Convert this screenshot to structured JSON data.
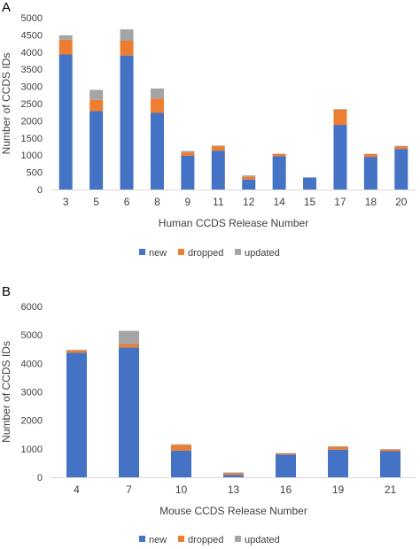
{
  "panels": {
    "a": "A",
    "b": "B"
  },
  "chart_data": [
    {
      "type": "bar",
      "stacked": true,
      "xlabel": "Human CCDS Release Number",
      "ylabel": "Number of CCDS IDs",
      "ylim": [
        0,
        5000
      ],
      "yticks": [
        0,
        500,
        1000,
        1500,
        2000,
        2500,
        3000,
        3500,
        4000,
        4500,
        5000
      ],
      "grid": false,
      "legend_position": "bottom",
      "categories": [
        "3",
        "5",
        "6",
        "8",
        "9",
        "11",
        "12",
        "14",
        "15",
        "17",
        "18",
        "20"
      ],
      "series": [
        {
          "name": "new",
          "color": "#4472c4",
          "values": [
            3930,
            2280,
            3900,
            2230,
            980,
            1130,
            290,
            970,
            350,
            1880,
            950,
            1180
          ]
        },
        {
          "name": "dropped",
          "color": "#ed7d31",
          "values": [
            430,
            330,
            430,
            420,
            100,
            130,
            80,
            70,
            0,
            440,
            80,
            70
          ]
        },
        {
          "name": "updated",
          "color": "#a5a5a5",
          "values": [
            130,
            290,
            330,
            290,
            40,
            20,
            40,
            0,
            0,
            20,
            10,
            20
          ]
        }
      ]
    },
    {
      "type": "bar",
      "stacked": true,
      "xlabel": "Mouse CCDS Release Number",
      "ylabel": "Number of CCDS IDs",
      "ylim": [
        0,
        6000
      ],
      "yticks": [
        0,
        1000,
        2000,
        3000,
        4000,
        5000,
        6000
      ],
      "grid": false,
      "legend_position": "bottom",
      "categories": [
        "4",
        "7",
        "10",
        "13",
        "16",
        "19",
        "21"
      ],
      "series": [
        {
          "name": "new",
          "color": "#4472c4",
          "values": [
            4370,
            4560,
            940,
            80,
            800,
            970,
            920
          ]
        },
        {
          "name": "dropped",
          "color": "#ed7d31",
          "values": [
            80,
            120,
            200,
            60,
            40,
            100,
            60
          ]
        },
        {
          "name": "updated",
          "color": "#a5a5a5",
          "values": [
            30,
            460,
            20,
            30,
            10,
            20,
            10
          ]
        }
      ]
    }
  ]
}
